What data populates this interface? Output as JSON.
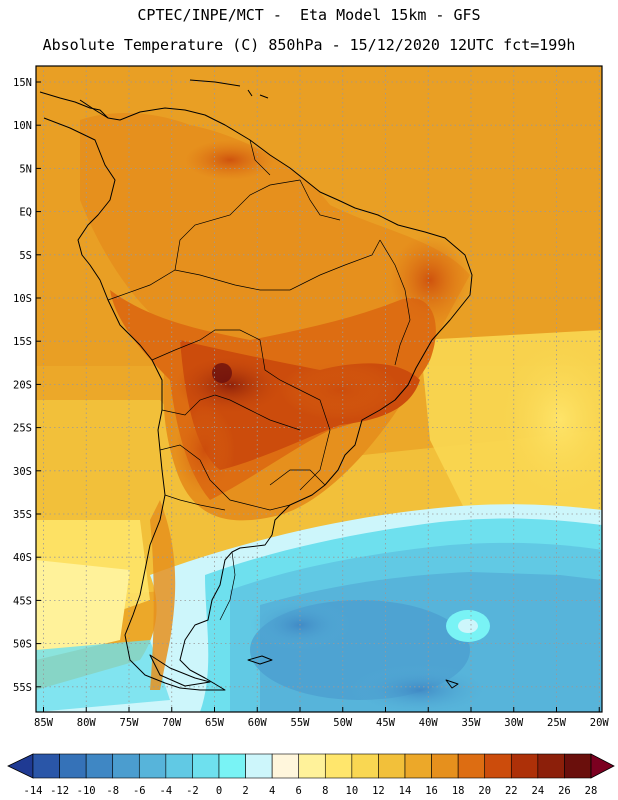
{
  "header": {
    "line1": "CPTEC/INPE/MCT -  Eta Model 15km - GFS",
    "line2": "Absolute Temperature (C) 850hPa - 15/12/2020 12UTC fct=199h"
  },
  "map": {
    "lat_labels": [
      "15N",
      "10N",
      "5N",
      "EQ",
      "5S",
      "10S",
      "15S",
      "20S",
      "25S",
      "30S",
      "35S",
      "40S",
      "45S",
      "50S",
      "55S"
    ],
    "lon_labels": [
      "85W",
      "80W",
      "75W",
      "70W",
      "65W",
      "60W",
      "55W",
      "50W",
      "45W",
      "40W",
      "35W",
      "30W",
      "25W",
      "20W"
    ]
  },
  "colorbar": {
    "ticks": [
      "-14",
      "-12",
      "-10",
      "-8",
      "-6",
      "-4",
      "-2",
      "0",
      "2",
      "4",
      "6",
      "8",
      "10",
      "12",
      "14",
      "16",
      "18",
      "20",
      "22",
      "24",
      "26",
      "28"
    ],
    "colors": [
      "#1f3a93",
      "#2a56a8",
      "#3572b8",
      "#3f87c4",
      "#4b9dcf",
      "#57b4da",
      "#61c9e4",
      "#6ee0ee",
      "#79f3f5",
      "#cdf6fb",
      "#fff6dc",
      "#fff29a",
      "#ffe66c",
      "#f9d752",
      "#f2c03a",
      "#eca829",
      "#e6901d",
      "#dd6d12",
      "#cc4c0c",
      "#ad3008",
      "#8c1f0a",
      "#6a0f0c",
      "#7b0020"
    ]
  }
}
